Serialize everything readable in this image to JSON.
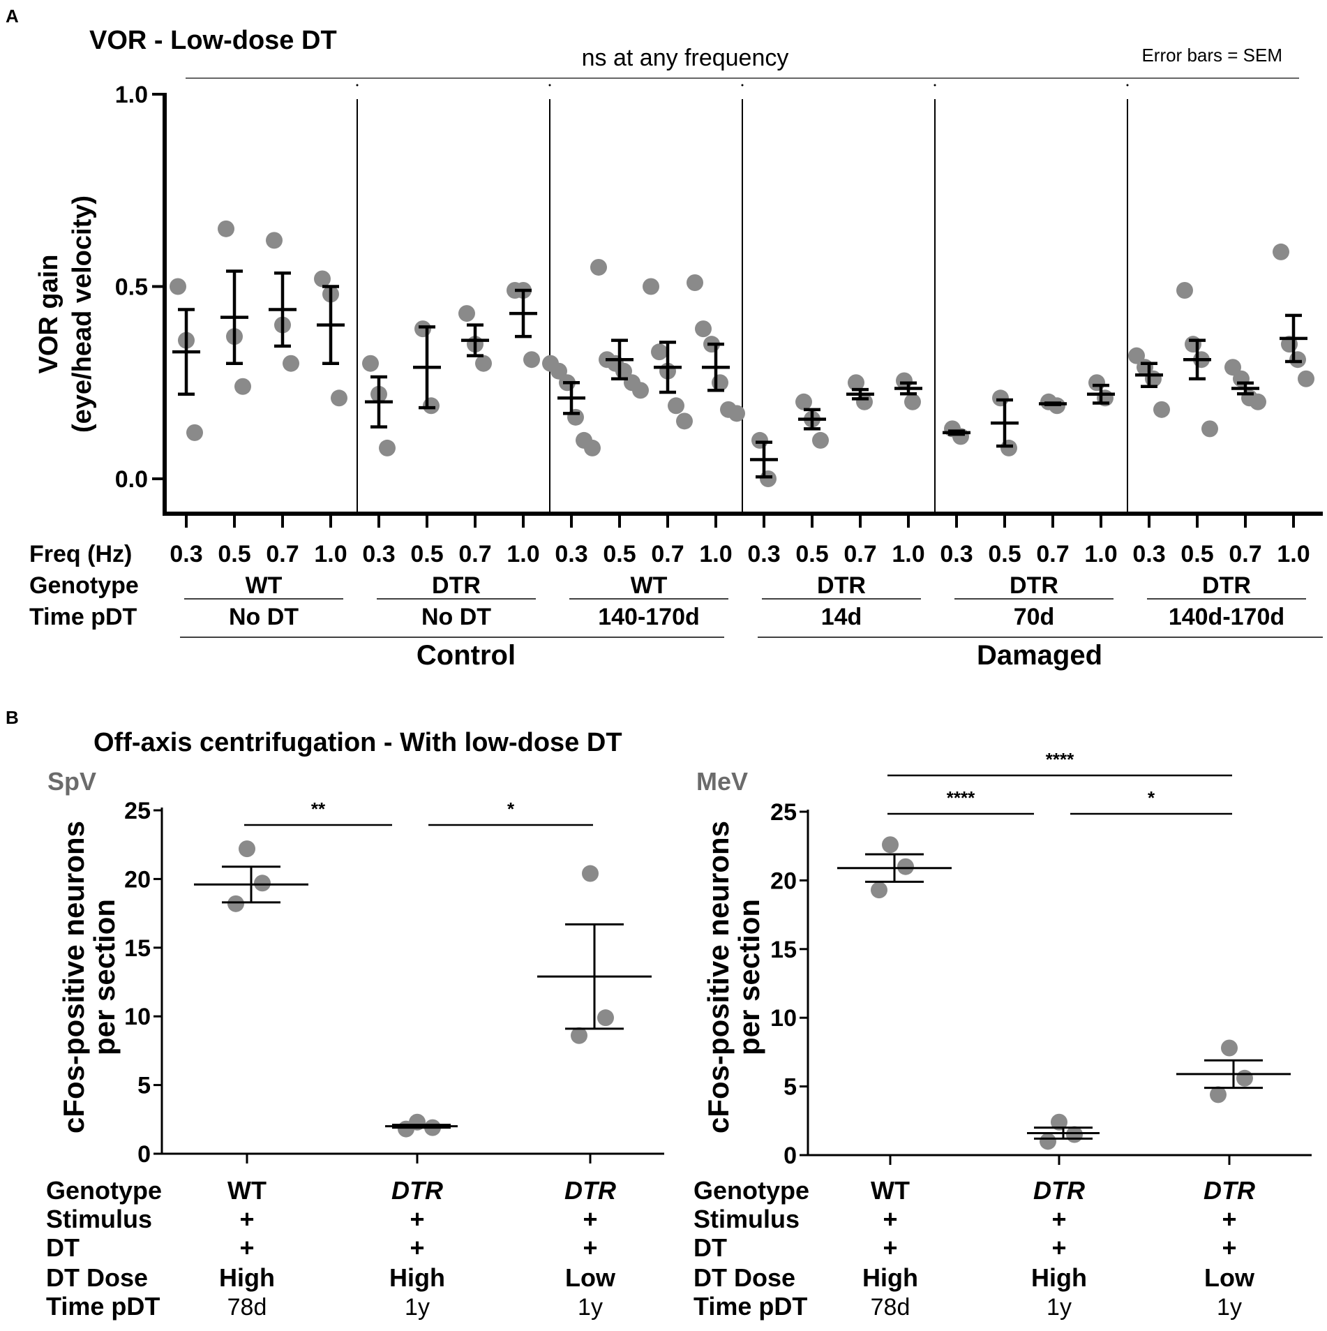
{
  "panel_labels": {
    "a": "A",
    "b": "B"
  },
  "panel_a": {
    "title": "VOR - Low-dose DT",
    "significance_note": "ns at any frequency",
    "error_note": "Error bars = SEM",
    "row_labels": {
      "freq": "Freq (Hz)",
      "genotype": "Genotype",
      "time": "Time pDT"
    },
    "supergroups": [
      {
        "label": "Control"
      },
      {
        "label": "Damaged"
      }
    ]
  },
  "panel_b": {
    "title": "Off-axis centrifugation - With low-dose DT",
    "row_labels": [
      "Genotype",
      "Stimulus",
      "DT",
      "DT Dose",
      "Time pDT"
    ]
  },
  "chart_data": [
    {
      "type": "scatter",
      "title": "VOR - Low-dose DT",
      "ylabel_line1": "VOR gain",
      "ylabel_line2": "(eye/head velocity)",
      "ylim": [
        -0.1,
        1.0
      ],
      "yticks": [
        "0.0",
        "0.5",
        "1.0"
      ],
      "frequencies": [
        "0.3",
        "0.5",
        "0.7",
        "1.0"
      ],
      "groups": [
        {
          "genotype": "WT",
          "time": "No DT",
          "condition": "Control",
          "series": [
            {
              "freq": "0.3",
              "mean": 0.33,
              "sem": 0.11,
              "points": [
                0.5,
                0.36,
                0.12
              ]
            },
            {
              "freq": "0.5",
              "mean": 0.42,
              "sem": 0.12,
              "points": [
                0.65,
                0.37,
                0.24
              ]
            },
            {
              "freq": "0.7",
              "mean": 0.44,
              "sem": 0.095,
              "points": [
                0.62,
                0.4,
                0.3
              ]
            },
            {
              "freq": "1.0",
              "mean": 0.4,
              "sem": 0.1,
              "points": [
                0.52,
                0.48,
                0.21
              ]
            }
          ]
        },
        {
          "genotype": "DTR",
          "time": "No DT",
          "condition": "Control",
          "series": [
            {
              "freq": "0.3",
              "mean": 0.2,
              "sem": 0.065,
              "points": [
                0.3,
                0.22,
                0.08
              ]
            },
            {
              "freq": "0.5",
              "mean": 0.29,
              "sem": 0.105,
              "points": [
                0.39,
                0.19
              ]
            },
            {
              "freq": "0.7",
              "mean": 0.36,
              "sem": 0.04,
              "points": [
                0.43,
                0.35,
                0.3
              ]
            },
            {
              "freq": "1.0",
              "mean": 0.43,
              "sem": 0.06,
              "points": [
                0.49,
                0.49,
                0.31
              ]
            }
          ]
        },
        {
          "genotype": "WT",
          "time": "140-170d",
          "condition": "Control",
          "series": [
            {
              "freq": "0.3",
              "mean": 0.21,
              "sem": 0.04,
              "points": [
                0.3,
                0.28,
                0.25,
                0.16,
                0.1,
                0.08
              ]
            },
            {
              "freq": "0.5",
              "mean": 0.31,
              "sem": 0.05,
              "points": [
                0.55,
                0.31,
                0.3,
                0.28,
                0.25,
                0.23
              ]
            },
            {
              "freq": "0.7",
              "mean": 0.29,
              "sem": 0.065,
              "points": [
                0.5,
                0.33,
                0.28,
                0.19,
                0.15
              ]
            },
            {
              "freq": "1.0",
              "mean": 0.29,
              "sem": 0.06,
              "points": [
                0.51,
                0.39,
                0.35,
                0.25,
                0.18,
                0.17
              ]
            }
          ]
        },
        {
          "genotype": "DTR",
          "time": "14d",
          "condition": "Damaged",
          "series": [
            {
              "freq": "0.3",
              "mean": 0.05,
              "sem": 0.045,
              "points": [
                0.1,
                0.0
              ]
            },
            {
              "freq": "0.5",
              "mean": 0.155,
              "sem": 0.025,
              "points": [
                0.2,
                0.155,
                0.1
              ]
            },
            {
              "freq": "0.7",
              "mean": 0.22,
              "sem": 0.012,
              "points": [
                0.25,
                0.2
              ]
            },
            {
              "freq": "1.0",
              "mean": 0.235,
              "sem": 0.014,
              "points": [
                0.255,
                0.2
              ]
            }
          ]
        },
        {
          "genotype": "DTR",
          "time": "70d",
          "condition": "Damaged",
          "series": [
            {
              "freq": "0.3",
              "mean": 0.12,
              "sem": 0.004,
              "points": [
                0.13,
                0.11
              ]
            },
            {
              "freq": "0.5",
              "mean": 0.145,
              "sem": 0.06,
              "points": [
                0.21,
                0.08
              ]
            },
            {
              "freq": "0.7",
              "mean": 0.195,
              "sem": 0.002,
              "points": [
                0.2,
                0.19
              ]
            },
            {
              "freq": "1.0",
              "mean": 0.22,
              "sem": 0.023,
              "points": [
                0.25,
                0.21
              ]
            }
          ]
        },
        {
          "genotype": "DTR",
          "time": "140d-170d",
          "condition": "Damaged",
          "series": [
            {
              "freq": "0.3",
              "mean": 0.27,
              "sem": 0.03,
              "points": [
                0.32,
                0.29,
                0.26,
                0.18
              ]
            },
            {
              "freq": "0.5",
              "mean": 0.31,
              "sem": 0.05,
              "points": [
                0.49,
                0.35,
                0.31,
                0.13
              ]
            },
            {
              "freq": "0.7",
              "mean": 0.235,
              "sem": 0.014,
              "points": [
                0.29,
                0.26,
                0.21,
                0.2
              ]
            },
            {
              "freq": "1.0",
              "mean": 0.365,
              "sem": 0.06,
              "points": [
                0.59,
                0.35,
                0.31,
                0.26
              ]
            }
          ]
        }
      ]
    },
    {
      "type": "scatter",
      "region": "SpV",
      "ylabel_line1": "cFos-positive neurons",
      "ylabel_line2": "per section",
      "ylim": [
        0,
        25
      ],
      "yticks": [
        "0",
        "5",
        "10",
        "15",
        "20",
        "25"
      ],
      "categories": [
        {
          "genotype": "WT",
          "genotype_italic": false,
          "stimulus": "+",
          "dt": "+",
          "dose": "High",
          "time": "78d",
          "mean": 19.6,
          "sem": 1.3,
          "points": [
            22.2,
            19.7,
            18.2
          ]
        },
        {
          "genotype": "DTR",
          "genotype_italic": true,
          "stimulus": "+",
          "dt": "+",
          "dose": "High",
          "time": "1y",
          "mean": 2.0,
          "sem": 0.1,
          "points": [
            2.3,
            1.9,
            1.8
          ]
        },
        {
          "genotype": "DTR",
          "genotype_italic": true,
          "stimulus": "+",
          "dt": "+",
          "dose": "Low",
          "time": "1y",
          "mean": 12.9,
          "sem": 3.8,
          "points": [
            20.4,
            9.9,
            8.6
          ]
        }
      ],
      "comparisons": [
        {
          "from": 0,
          "to": 1,
          "label": "**",
          "level": 0
        },
        {
          "from": 1,
          "to": 2,
          "label": "*",
          "level": 0
        }
      ]
    },
    {
      "type": "scatter",
      "region": "MeV",
      "ylabel_line1": "cFos-positive neurons",
      "ylabel_line2": "per section",
      "ylim": [
        0,
        25
      ],
      "yticks": [
        "0",
        "5",
        "10",
        "15",
        "20",
        "25"
      ],
      "categories": [
        {
          "genotype": "WT",
          "genotype_italic": false,
          "stimulus": "+",
          "dt": "+",
          "dose": "High",
          "time": "78d",
          "mean": 20.9,
          "sem": 1.0,
          "points": [
            22.6,
            21.0,
            19.3
          ]
        },
        {
          "genotype": "DTR",
          "genotype_italic": true,
          "stimulus": "+",
          "dt": "+",
          "dose": "High",
          "time": "1y",
          "mean": 1.6,
          "sem": 0.4,
          "points": [
            2.4,
            1.5,
            1.0
          ]
        },
        {
          "genotype": "DTR",
          "genotype_italic": true,
          "stimulus": "+",
          "dt": "+",
          "dose": "Low",
          "time": "1y",
          "mean": 5.9,
          "sem": 1.0,
          "points": [
            7.8,
            5.6,
            4.4
          ]
        }
      ],
      "comparisons": [
        {
          "from": 0,
          "to": 1,
          "label": "****",
          "level": 0
        },
        {
          "from": 1,
          "to": 2,
          "label": "*",
          "level": 0
        },
        {
          "from": 0,
          "to": 2,
          "label": "****",
          "level": 1
        }
      ]
    }
  ]
}
